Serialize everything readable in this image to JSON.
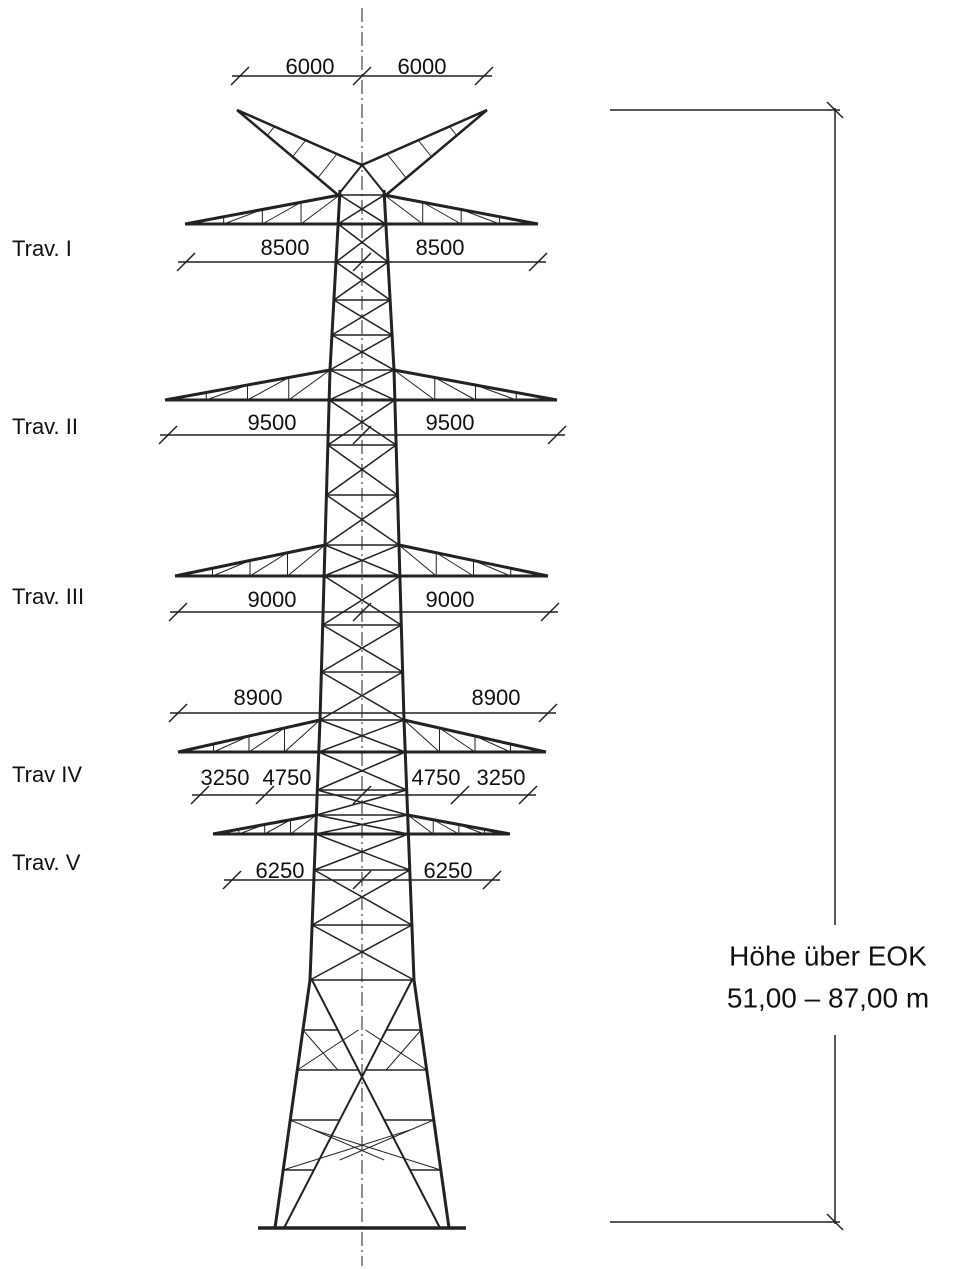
{
  "top_dims": [
    "6000",
    "6000"
  ],
  "crossarms": [
    {
      "label": "Trav. I",
      "dims": [
        "8500",
        "8500"
      ]
    },
    {
      "label": "Trav. II",
      "dims": [
        "9500",
        "9500"
      ]
    },
    {
      "label": "Trav. III",
      "dims": [
        "9000",
        "9000"
      ]
    },
    {
      "label": "Trav IV",
      "outer_dims": [
        "8900",
        "8900"
      ],
      "dims": [
        "3250",
        "4750",
        "4750",
        "3250"
      ]
    },
    {
      "label": "Trav. V",
      "dims": [
        "6250",
        "6250"
      ]
    }
  ],
  "height_label": [
    "Höhe über EOK",
    "51,00 – 87,00 m"
  ]
}
